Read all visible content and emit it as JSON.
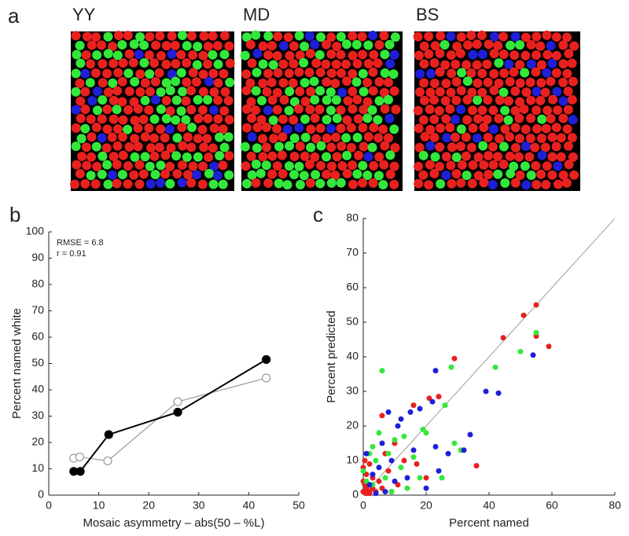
{
  "chart_data": [
    {
      "type": "mosaic",
      "panel_label": "a",
      "titles": [
        "YY",
        "MD",
        "BS"
      ]
    },
    {
      "type": "line",
      "panel_label": "b",
      "x_label": "Mosaic asymmetry – abs(50 – %L)",
      "y_label": "Percent named white",
      "annotations": [
        "RMSE = 6.8",
        "r = 0.91"
      ],
      "xlim": [
        0,
        50
      ],
      "xticks": [
        0,
        10,
        20,
        30,
        40,
        50
      ],
      "ylim": [
        0,
        100
      ],
      "yticks": [
        0,
        10,
        20,
        30,
        40,
        50,
        60,
        70,
        80,
        90,
        100
      ],
      "series": [
        {
          "color": "#000000",
          "marker": "filled",
          "x": [
            5,
            6.3,
            12,
            25.8,
            43.5
          ],
          "values": [
            9,
            9,
            23,
            31.5,
            51.5
          ]
        },
        {
          "color": "#999999",
          "marker": "open",
          "x": [
            5,
            6.2,
            11.8,
            25.8,
            43.5
          ],
          "values": [
            14,
            14.5,
            13,
            35.5,
            44.5
          ]
        }
      ]
    },
    {
      "type": "scatter",
      "panel_label": "c",
      "x_label": "Percent named",
      "y_label": "Percent predicted",
      "xlim": [
        0,
        80
      ],
      "xticks": [
        0,
        20,
        40,
        60,
        80
      ],
      "ylim": [
        0,
        80
      ],
      "yticks": [
        0,
        10,
        20,
        30,
        40,
        50,
        60,
        70,
        80
      ],
      "series": [
        {
          "color": "#e8211e",
          "x": [
            55,
            51,
            44.5,
            59,
            55,
            29,
            36,
            24,
            21,
            16,
            20,
            13,
            6,
            8,
            5,
            3,
            2,
            1,
            0.5,
            1,
            0,
            0.5,
            2,
            4,
            6,
            9,
            11,
            0,
            0,
            1,
            3,
            7,
            10,
            17,
            2
          ],
          "values": [
            55,
            52,
            45.5,
            43,
            46,
            39.5,
            8.5,
            28.5,
            28,
            26,
            5,
            10,
            23,
            7,
            4,
            2,
            1,
            0.5,
            3,
            6,
            8,
            10,
            0.5,
            1,
            2,
            1,
            3,
            1,
            4,
            2,
            5,
            12,
            15,
            9,
            9
          ]
        },
        {
          "color": "#33e83a",
          "x": [
            6,
            28,
            55,
            50,
            42,
            26,
            19,
            13,
            10,
            8,
            5,
            4,
            3,
            12,
            18,
            25,
            29,
            31,
            16,
            20,
            2,
            0,
            1,
            3,
            7,
            9,
            14
          ],
          "values": [
            36,
            37,
            47,
            41.5,
            37,
            26,
            19,
            17,
            16,
            12,
            18,
            10,
            14,
            8,
            5,
            5,
            15,
            13,
            11,
            18,
            12,
            7,
            4,
            3,
            5,
            1,
            2
          ]
        },
        {
          "color": "#1f1fd8",
          "x": [
            23,
            39,
            43,
            54,
            34,
            32,
            27,
            23,
            18,
            15,
            12,
            8,
            11,
            22,
            6,
            9,
            14,
            5,
            3,
            1,
            2,
            7,
            4,
            10,
            20,
            16,
            24
          ],
          "values": [
            36,
            30,
            29.5,
            40.5,
            17.5,
            13,
            12,
            14,
            25,
            24,
            22,
            24,
            20,
            27,
            15,
            10,
            5,
            8,
            6,
            12,
            3,
            1,
            0.5,
            4,
            2,
            13,
            7
          ]
        }
      ]
    }
  ]
}
